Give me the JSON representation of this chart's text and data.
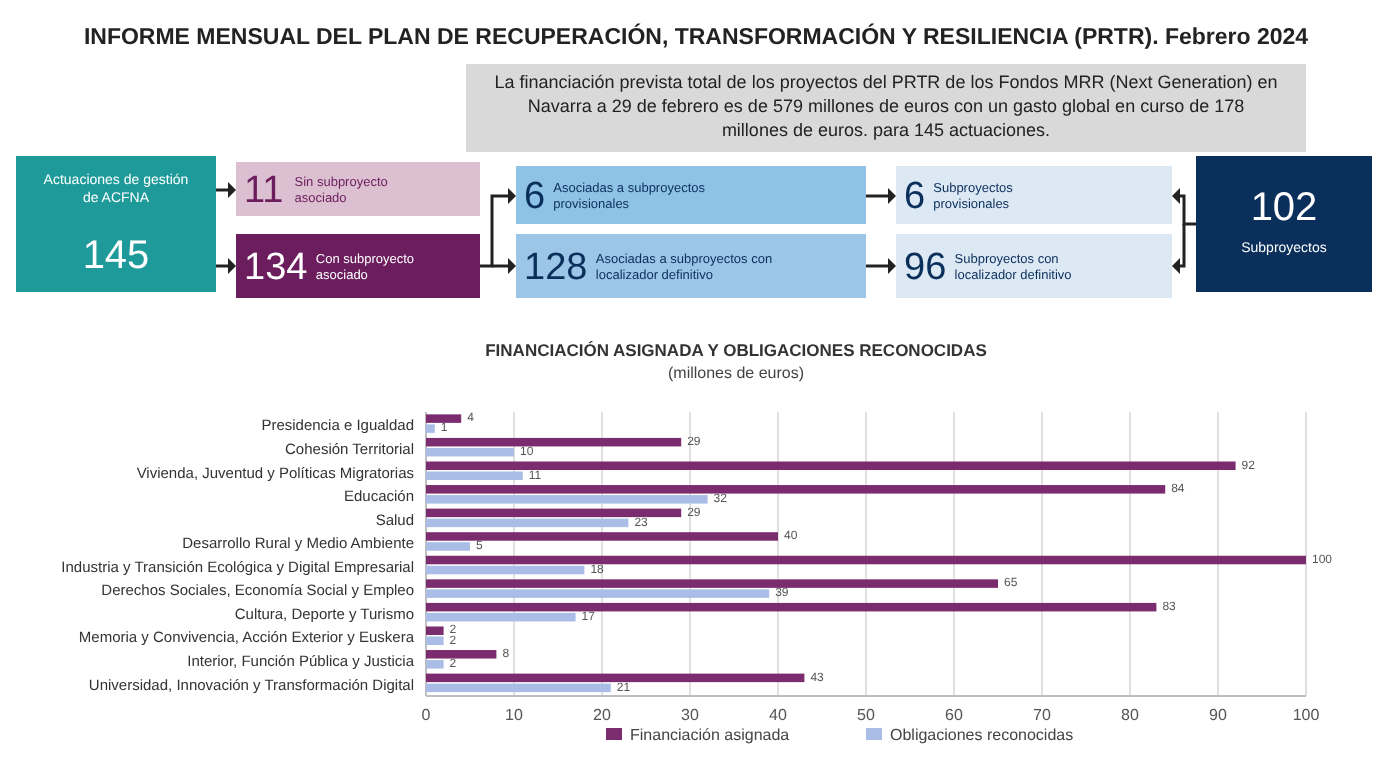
{
  "chart_data": [
    {
      "type": "other",
      "title": "INFORME MENSUAL DEL PLAN DE RECUPERACIÓN, TRANSFORMACIÓN Y RESILIENCIA (PRTR). Febrero 2024",
      "subtitle": "La financiación prevista total de los proyectos del PRTR de los Fondos MRR (Next Generation) en Navarra a 29 de febrero es de 579 millones de euros con un gasto global en curso de 178 millones de euros. para 145 actuaciones.",
      "annotations": [
        "Actuaciones de gestión de ACFNA",
        "145",
        "11",
        "Sin subproyecto asociado",
        "134",
        "Con subproyecto asociado",
        "6",
        "Asociadas a subproyectos provisionales",
        "128",
        "Asociadas a subproyectos con localizador definitivo",
        "6",
        "Subproyectos provisionales",
        "96",
        "Subproyectos con localizador definitivo",
        "102",
        "Subproyectos"
      ]
    },
    {
      "type": "bar",
      "orientation": "horizontal",
      "title": "FINANCIACIÓN ASIGNADA Y OBLIGACIONES RECONOCIDAS",
      "subtitle": "(millones de euros)",
      "categories": [
        "Presidencia e Igualdad",
        "Cohesión Territorial",
        "Vivienda, Juventud y Políticas Migratorias",
        "Educación",
        "Salud",
        "Desarrollo Rural y Medio Ambiente",
        "Industria y Transición Ecológica y Digital Empresarial",
        "Derechos Sociales, Economía Social y Empleo",
        "Cultura, Deporte y Turismo",
        "Memoria y Convivencia, Acción Exterior y Euskera",
        "Interior, Función Pública y Justicia",
        "Universidad, Innovación y Transformación Digital"
      ],
      "series": [
        {
          "name": "Financiación asignada",
          "color": "#7b2c6e",
          "values": [
            4,
            29,
            92,
            84,
            29,
            40,
            100,
            65,
            83,
            2,
            8,
            43
          ]
        },
        {
          "name": "Obligaciones reconocidas",
          "color": "#a9bde6",
          "values": [
            1,
            10,
            11,
            32,
            23,
            5,
            18,
            39,
            17,
            2,
            2,
            21
          ]
        }
      ],
      "xlim": [
        0,
        100
      ],
      "xticks": [
        0,
        10,
        20,
        30,
        40,
        50,
        60,
        70,
        80,
        90,
        100
      ],
      "grid": "x",
      "legend": "bottom",
      "data_labels": true
    }
  ]
}
